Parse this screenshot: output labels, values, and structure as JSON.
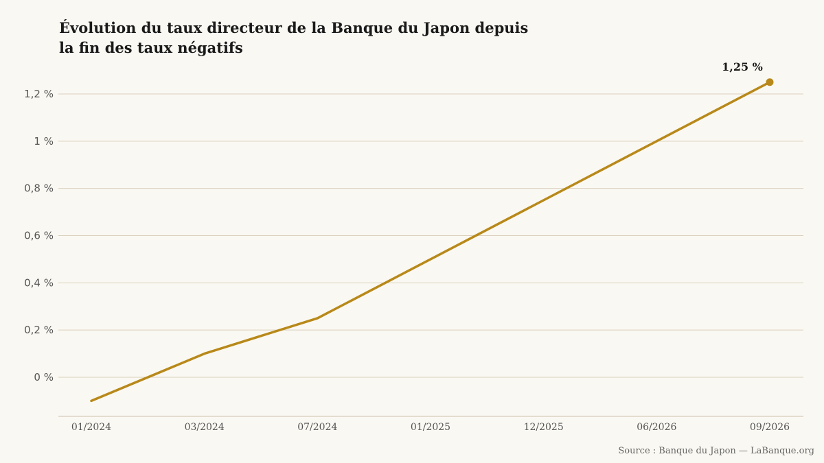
{
  "chart_data": {
    "type": "line",
    "title_lines": [
      "Évolution du taux directeur de la Banque du Japon depuis",
      "la fin des taux négatifs"
    ],
    "categories": [
      "01/2024",
      "03/2024",
      "07/2024",
      "01/2025",
      "12/2025",
      "06/2026",
      "09/2026"
    ],
    "series": [
      {
        "values": [
          -0.1,
          0.1,
          0.25,
          0.5,
          0.75,
          1.0,
          1.25
        ]
      }
    ],
    "ylim": [
      -0.17,
      1.3
    ],
    "yticks": [
      0,
      0.2,
      0.4,
      0.6,
      0.8,
      1.0,
      1.2
    ],
    "ytick_labels": [
      "0 %",
      "0,2 %",
      "0,4 %",
      "0,6 %",
      "0,8 %",
      "1 %",
      "1,2 %"
    ],
    "grid": true,
    "end_label": "1,25 %",
    "source": "Source : Banque du Japon — LaBanque.org",
    "colors": {
      "line": "#b8891a",
      "background": "#faf8f2",
      "grid": "#d9d0bd"
    }
  }
}
